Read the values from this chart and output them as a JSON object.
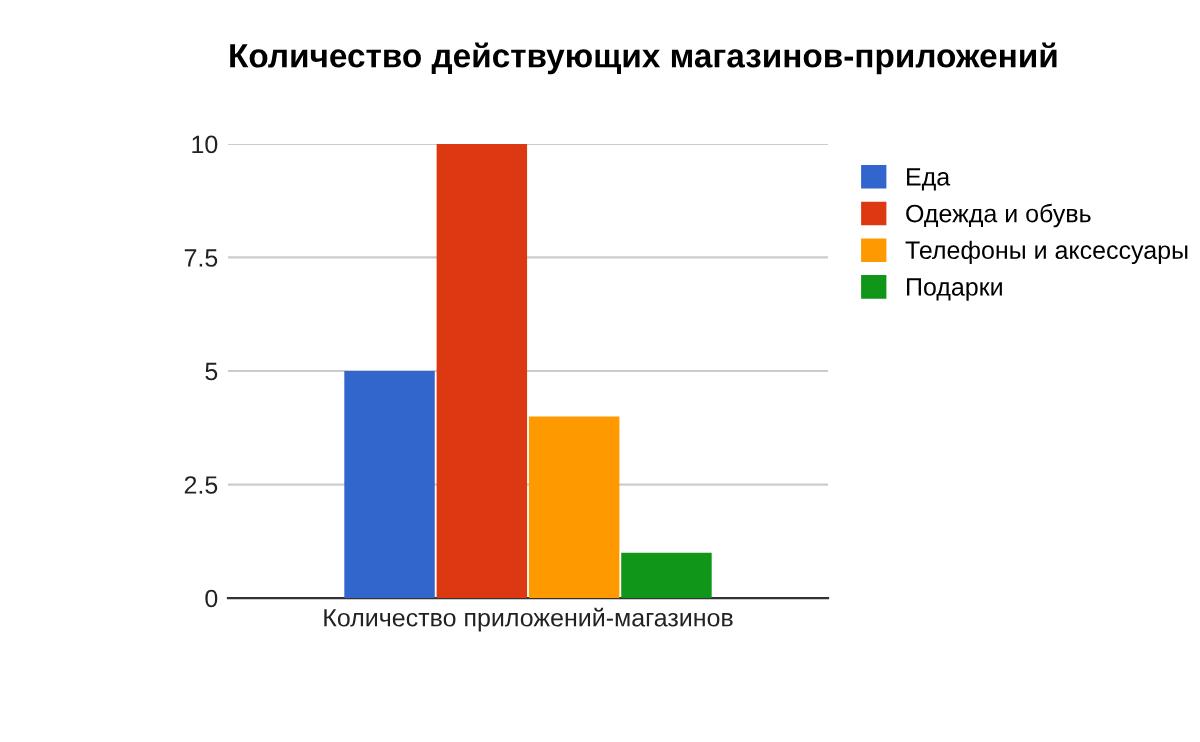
{
  "chart_data": {
    "type": "bar",
    "title": "Количество действующих магазинов-приложений",
    "categories": [
      "Количество приложений-магазинов"
    ],
    "series": [
      {
        "name": "Еда",
        "color": "#3366cc",
        "values": [
          5
        ]
      },
      {
        "name": "Одежда и обувь",
        "color": "#dc3912",
        "values": [
          10
        ]
      },
      {
        "name": "Телефоны и аксессуары",
        "color": "#ff9900",
        "values": [
          4
        ]
      },
      {
        "name": "Подарки",
        "color": "#109618",
        "values": [
          1
        ]
      }
    ],
    "ylim": [
      0,
      10
    ],
    "yticks": [
      0,
      2.5,
      5,
      7.5,
      10
    ],
    "grid": "y",
    "legend": "right"
  }
}
